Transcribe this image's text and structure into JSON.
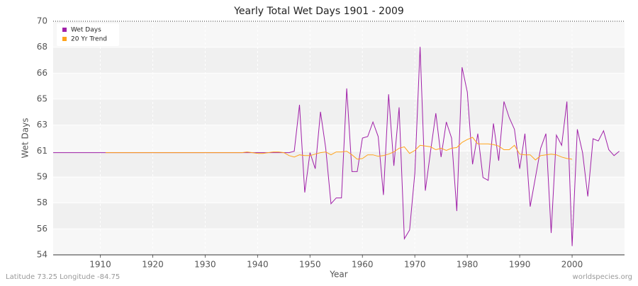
{
  "chart_data": {
    "type": "line",
    "title": "Yearly Total Wet Days 1901 - 2009",
    "xlabel": "Year",
    "ylabel": "Wet Days",
    "footer_left": "Latitude 73.25 Longitude -84.75",
    "footer_right": "worldspecies.org",
    "legend": "top-left",
    "grid": true,
    "xlim": [
      1901,
      2010
    ],
    "xticks": [
      1910,
      1920,
      1930,
      1940,
      1950,
      1960,
      1970,
      1980,
      1990,
      2000
    ],
    "ylim": [
      54,
      70
    ],
    "yticks": [
      54,
      {
        "value": 55.78,
        "label": "56"
      },
      {
        "value": 57.56,
        "label": "58"
      },
      {
        "value": 59.33,
        "label": "59"
      },
      {
        "value": 61.11,
        "label": "61"
      },
      {
        "value": 62.89,
        "label": "63"
      },
      {
        "value": 64.67,
        "label": "65"
      },
      {
        "value": 66.44,
        "label": "66"
      },
      {
        "value": 68.22,
        "label": "68"
      },
      70
    ],
    "x": [
      1901,
      1902,
      1903,
      1904,
      1905,
      1906,
      1907,
      1908,
      1909,
      1910,
      1911,
      1912,
      1913,
      1914,
      1915,
      1916,
      1917,
      1918,
      1919,
      1920,
      1921,
      1922,
      1923,
      1924,
      1925,
      1926,
      1927,
      1928,
      1929,
      1930,
      1931,
      1932,
      1933,
      1934,
      1935,
      1936,
      1937,
      1938,
      1939,
      1940,
      1941,
      1942,
      1943,
      1944,
      1945,
      1946,
      1947,
      1948,
      1949,
      1950,
      1951,
      1952,
      1953,
      1954,
      1955,
      1956,
      1957,
      1958,
      1959,
      1960,
      1961,
      1962,
      1963,
      1964,
      1965,
      1966,
      1967,
      1968,
      1969,
      1970,
      1971,
      1972,
      1973,
      1974,
      1975,
      1976,
      1977,
      1978,
      1979,
      1980,
      1981,
      1982,
      1983,
      1984,
      1985,
      1986,
      1987,
      1988,
      1989,
      1990,
      1991,
      1992,
      1993,
      1994,
      1995,
      1996,
      1997,
      1998,
      1999,
      2000,
      2001,
      2002,
      2003,
      2004,
      2005,
      2006,
      2007,
      2008,
      2009
    ],
    "series": [
      {
        "name": "Wet Days",
        "color": "#a020a8",
        "values": [
          61,
          61,
          61,
          61,
          61,
          61,
          61,
          61,
          61,
          61,
          61,
          61,
          61,
          61,
          61,
          61,
          61,
          61,
          61,
          61,
          61,
          61,
          61,
          61,
          61,
          61,
          61,
          61,
          61,
          61,
          61,
          61,
          61,
          61,
          61,
          61,
          61,
          61,
          61,
          61,
          61,
          61,
          61,
          61,
          61,
          61,
          61.1,
          64.28,
          58.27,
          61,
          59.9,
          63.8,
          61.3,
          57.5,
          57.9,
          57.9,
          65.4,
          59.7,
          59.7,
          62,
          62.1,
          63.1,
          62.1,
          58.1,
          65,
          60.1,
          64.1,
          55.1,
          55.7,
          59.6,
          68.25,
          58.4,
          61.1,
          63.7,
          60.7,
          63.1,
          62,
          57,
          66.85,
          65.15,
          60.2,
          62.3,
          59.3,
          59.1,
          63,
          60.45,
          64.5,
          63.4,
          62.6,
          59.9,
          62.3,
          57.3,
          59.3,
          61.3,
          62.3,
          55.5,
          62.2,
          61.5,
          64.5,
          54.6,
          62.6,
          61,
          58,
          61.95,
          61.8,
          62.5,
          61.2,
          60.8,
          61.1
        ]
      },
      {
        "name": "20 Yr Trend",
        "color": "#ffa31a",
        "values": [
          null,
          null,
          null,
          null,
          null,
          null,
          null,
          null,
          null,
          null,
          61,
          61,
          61,
          61,
          61,
          61,
          61,
          61,
          61,
          61,
          61,
          61,
          61,
          61,
          61,
          61,
          61,
          61,
          61,
          61,
          61,
          61,
          61,
          61,
          61,
          61,
          61,
          61.05,
          61,
          60.95,
          60.95,
          61,
          61.05,
          61.05,
          61,
          60.8,
          60.7,
          60.85,
          60.8,
          60.8,
          60.9,
          61,
          61.05,
          60.85,
          61.05,
          61.05,
          61.1,
          60.85,
          60.55,
          60.6,
          60.85,
          60.85,
          60.75,
          60.8,
          60.9,
          61.05,
          61.3,
          61.4,
          60.95,
          61.15,
          61.5,
          61.45,
          61.4,
          61.2,
          61.3,
          61.15,
          61.3,
          61.35,
          61.7,
          61.9,
          62.05,
          61.6,
          61.6,
          61.6,
          61.55,
          61.45,
          61.2,
          61.2,
          61.5,
          60.9,
          60.85,
          60.85,
          60.5,
          60.8,
          60.85,
          60.9,
          60.85,
          60.7,
          60.6,
          60.55,
          null,
          null,
          null,
          null,
          null,
          null,
          null,
          null,
          null
        ]
      }
    ]
  }
}
